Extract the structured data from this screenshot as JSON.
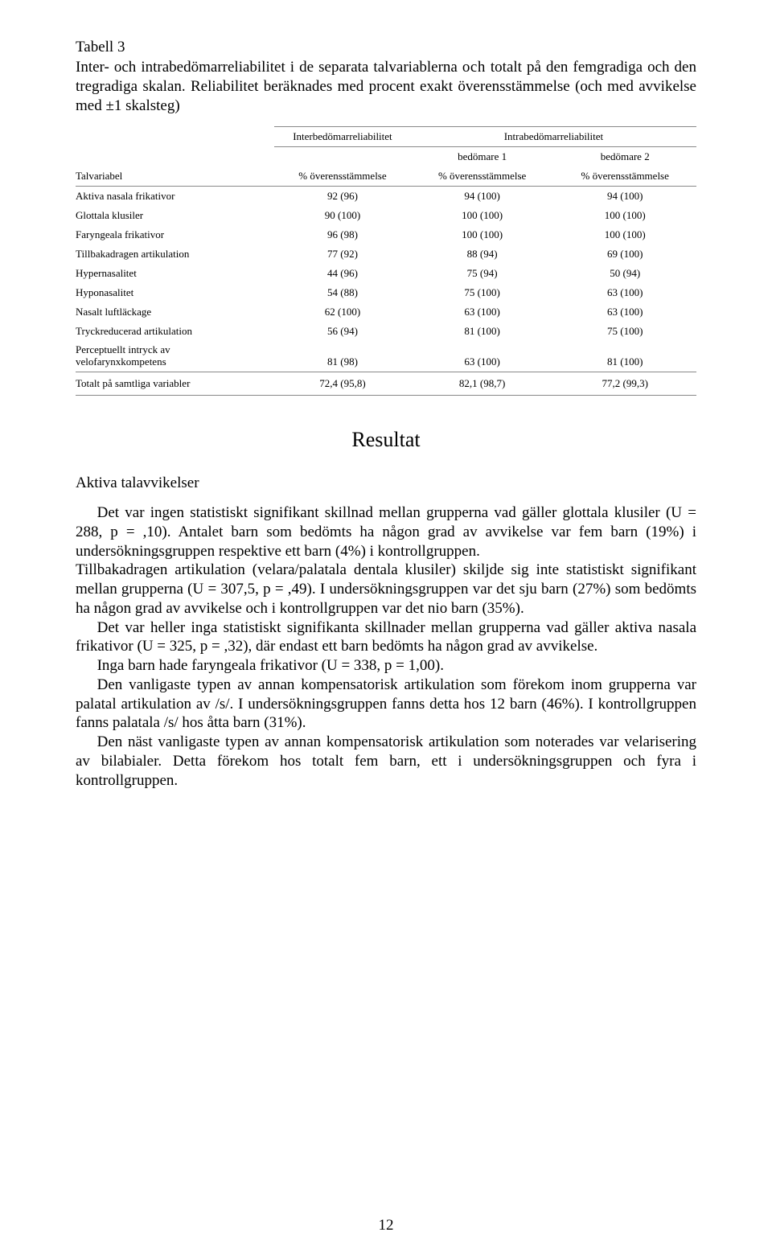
{
  "table3": {
    "label": "Tabell 3",
    "caption_parts": {
      "pre": "Inter- och intrabedömarreliabilitet i de separata talvariablerna ",
      "och": "och",
      "post": " totalt på den femgradiga och den tregradiga skalan. Reliabilitet beräknades med procent exakt överensstämmelse (och med avvikelse med ±1 skalsteg)"
    },
    "header": {
      "inter": "Interbedömarreliabilitet",
      "intra": "Intrabedömarreliabilitet",
      "bed1": "bedömare 1",
      "bed2": "bedömare 2",
      "rowhead": "Talvariabel",
      "pct": "% överensstämmelse"
    },
    "rows": [
      {
        "label": "Aktiva nasala frikativor",
        "c1": "92 (96)",
        "c2": "94 (100)",
        "c3": "94 (100)"
      },
      {
        "label": "Glottala klusiler",
        "c1": "90 (100)",
        "c2": "100 (100)",
        "c3": "100 (100)"
      },
      {
        "label": "Faryngeala frikativor",
        "c1": "96 (98)",
        "c2": "100 (100)",
        "c3": "100 (100)"
      },
      {
        "label": "Tillbakadragen artikulation",
        "c1": "77 (92)",
        "c2": "88 (94)",
        "c3": "69 (100)"
      },
      {
        "label": "Hypernasalitet",
        "c1": "44 (96)",
        "c2": "75 (94)",
        "c3": "50 (94)"
      },
      {
        "label": "Hyponasalitet",
        "c1": "54 (88)",
        "c2": "75 (100)",
        "c3": "63 (100)"
      },
      {
        "label": "Nasalt luftläckage",
        "c1": "62 (100)",
        "c2": "63 (100)",
        "c3": "63 (100)"
      },
      {
        "label": "Tryckreducerad artikulation",
        "c1": "56 (94)",
        "c2": "81 (100)",
        "c3": "75 (100)"
      },
      {
        "label": "Perceptuellt intryck av\nvelofarynxkompetens",
        "c1": "81 (98)",
        "c2": "63 (100)",
        "c3": "81 (100)"
      }
    ],
    "total": {
      "label": "Totalt på samtliga variabler",
      "c1": "72,4 (95,8)",
      "c2": "82,1 (98,7)",
      "c3": "77,2 (99,3)"
    }
  },
  "headings": {
    "resultat": "Resultat",
    "subsection": "Aktiva talavvikelser"
  },
  "paragraphs": {
    "p1": "Det var ingen statistiskt signifikant skillnad mellan grupperna vad gäller glottala klusiler (U = 288, p = ,10). Antalet barn som bedömts ha någon grad av avvikelse var fem barn (19%) i undersökningsgruppen respektive ett barn (4%) i kontrollgruppen.",
    "p2": "Tillbakadragen artikulation (velara/palatala dentala klusiler) skiljde sig inte statistiskt signifikant mellan grupperna (U = 307,5, p = ,49). I undersökningsgruppen var det sju barn (27%) som bedömts ha någon grad av avvikelse och i kontrollgruppen var det nio barn (35%).",
    "p3": "Det var heller inga statistiskt signifikanta skillnader mellan grupperna vad gäller aktiva nasala frikativor (U = 325, p = ,32), där endast ett barn bedömts ha någon grad av avvikelse.",
    "p4": "Inga barn hade faryngeala frikativor (U = 338, p = 1,00).",
    "p5": "Den vanligaste typen av annan kompensatorisk artikulation som förekom inom grupperna var palatal artikulation av /s/. I undersökningsgruppen fanns detta hos 12 barn (46%). I kontrollgruppen fanns palatala /s/ hos åtta barn (31%).",
    "p6": "Den näst vanligaste typen av annan kompensatorisk artikulation som noterades var velarisering av bilabialer. Detta förekom hos totalt fem barn, ett i undersökningsgruppen och fyra i kontrollgruppen."
  },
  "pageno": "12"
}
